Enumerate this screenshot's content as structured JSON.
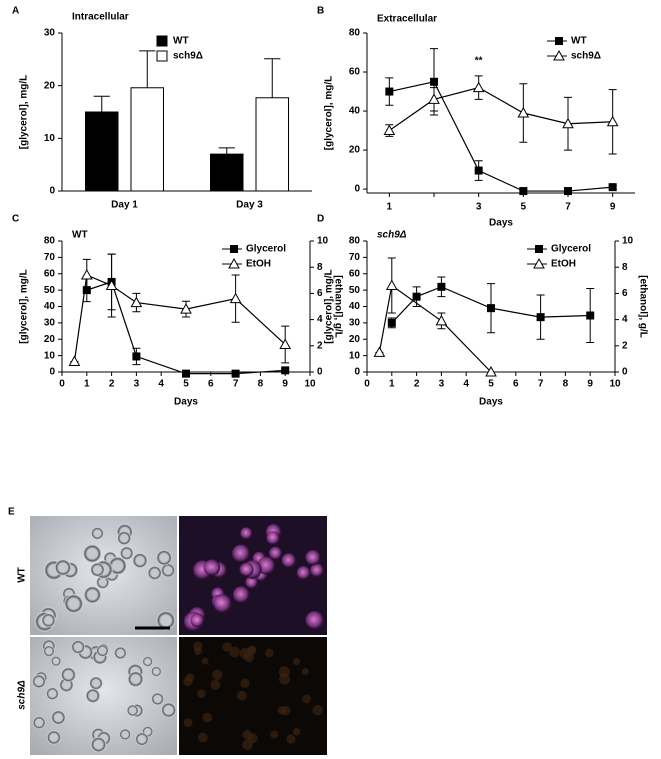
{
  "chart_data": [
    {
      "type": "bar",
      "panel": "A",
      "title": "Intracellular",
      "ylabel": "[glycerol], mg/L",
      "categories": [
        "Day 1",
        "Day 3"
      ],
      "series": [
        {
          "name": "WT",
          "color": "#000000",
          "values": [
            15,
            7
          ],
          "errors": [
            3,
            1.2
          ]
        },
        {
          "name": "sch9Δ",
          "color": "#ffffff",
          "values": [
            19.6,
            17.7
          ],
          "errors": [
            7,
            7.4
          ]
        }
      ],
      "ylim": [
        0,
        30
      ],
      "yticks": [
        0,
        10,
        20,
        30
      ],
      "legend": "upper center"
    },
    {
      "type": "line",
      "panel": "B",
      "title": "Extracellular",
      "ylabel": "[glycerol], mg/L",
      "xlabel": "Days",
      "categories": [
        "1",
        null,
        "3",
        "5",
        "7",
        "9"
      ],
      "annotation": "**",
      "series": [
        {
          "name": "WT",
          "marker": "square",
          "color": "#000000",
          "values": [
            50,
            55,
            9.5,
            -1,
            -1,
            1
          ],
          "errors": [
            7,
            17,
            5,
            1,
            1,
            1
          ]
        },
        {
          "name": "sch9Δ",
          "marker": "triangle",
          "color": "#000000",
          "values": [
            30,
            46,
            52,
            39,
            33.5,
            34.5
          ],
          "errors": [
            3,
            6,
            6,
            15,
            13.5,
            16.5
          ]
        }
      ],
      "ylim": [
        -2,
        80
      ],
      "yticks": [
        0,
        20,
        40,
        60,
        80
      ],
      "legend": "upper right"
    },
    {
      "type": "line",
      "panel": "C",
      "title": "WT",
      "ylabel": "[glycerol], mg/L",
      "y2label": "[ethanol], g/L",
      "xlabel": "Days",
      "series": [
        {
          "name": "Glycerol",
          "marker": "square",
          "color": "#000000",
          "x": [
            1,
            2,
            3,
            5,
            7,
            9
          ],
          "values": [
            50,
            55,
            9.5,
            -1,
            -1,
            1
          ],
          "errors": [
            7,
            17,
            5,
            1,
            1,
            1
          ]
        },
        {
          "name": "EtOH",
          "marker": "triangle",
          "color": "#000000",
          "axis": "y2",
          "x": [
            0.5,
            1,
            2,
            3,
            5,
            7,
            9
          ],
          "values": [
            0.8,
            7.4,
            6.6,
            5.3,
            4.8,
            5.6,
            2.1
          ],
          "errors": [
            0,
            1.2,
            2.4,
            0.7,
            0.6,
            1.8,
            1.4
          ]
        }
      ],
      "xlim": [
        0,
        10
      ],
      "xticks": [
        0,
        1,
        2,
        3,
        4,
        5,
        6,
        7,
        8,
        9,
        10
      ],
      "ylim": [
        0,
        80
      ],
      "yticks": [
        0,
        10,
        20,
        30,
        40,
        50,
        60,
        70,
        80
      ],
      "y2lim": [
        0,
        10
      ],
      "y2ticks": [
        0,
        2,
        4,
        6,
        8,
        10
      ],
      "legend": "upper right"
    },
    {
      "type": "line",
      "panel": "D",
      "title": "sch9Δ",
      "ylabel": "[glycerol], mg/L",
      "y2label": "[ethanol], g/L",
      "xlabel": "Days",
      "series": [
        {
          "name": "Glycerol",
          "marker": "square",
          "color": "#000000",
          "x": [
            1,
            2,
            3,
            5,
            7,
            9
          ],
          "values": [
            30,
            46,
            52,
            39,
            33.5,
            34.5
          ],
          "errors": [
            3,
            6,
            6,
            15,
            13.5,
            16.5
          ]
        },
        {
          "name": "EtOH",
          "marker": "triangle",
          "color": "#000000",
          "axis": "y2",
          "x": [
            0.5,
            1,
            3,
            5
          ],
          "values": [
            1.5,
            6.6,
            3.9,
            0
          ],
          "errors": [
            0,
            2.1,
            0.6,
            0
          ]
        }
      ],
      "xlim": [
        0,
        10
      ],
      "xticks": [
        0,
        1,
        2,
        3,
        4,
        5,
        6,
        7,
        8,
        9,
        10
      ],
      "ylim": [
        0,
        80
      ],
      "yticks": [
        0,
        10,
        20,
        30,
        40,
        50,
        60,
        70,
        80
      ],
      "y2lim": [
        0,
        10
      ],
      "y2ticks": [
        0,
        2,
        4,
        6,
        8,
        10
      ],
      "legend": "upper right"
    }
  ],
  "figure_e": {
    "panel": "E",
    "rows": [
      "WT",
      "sch9Δ"
    ]
  }
}
